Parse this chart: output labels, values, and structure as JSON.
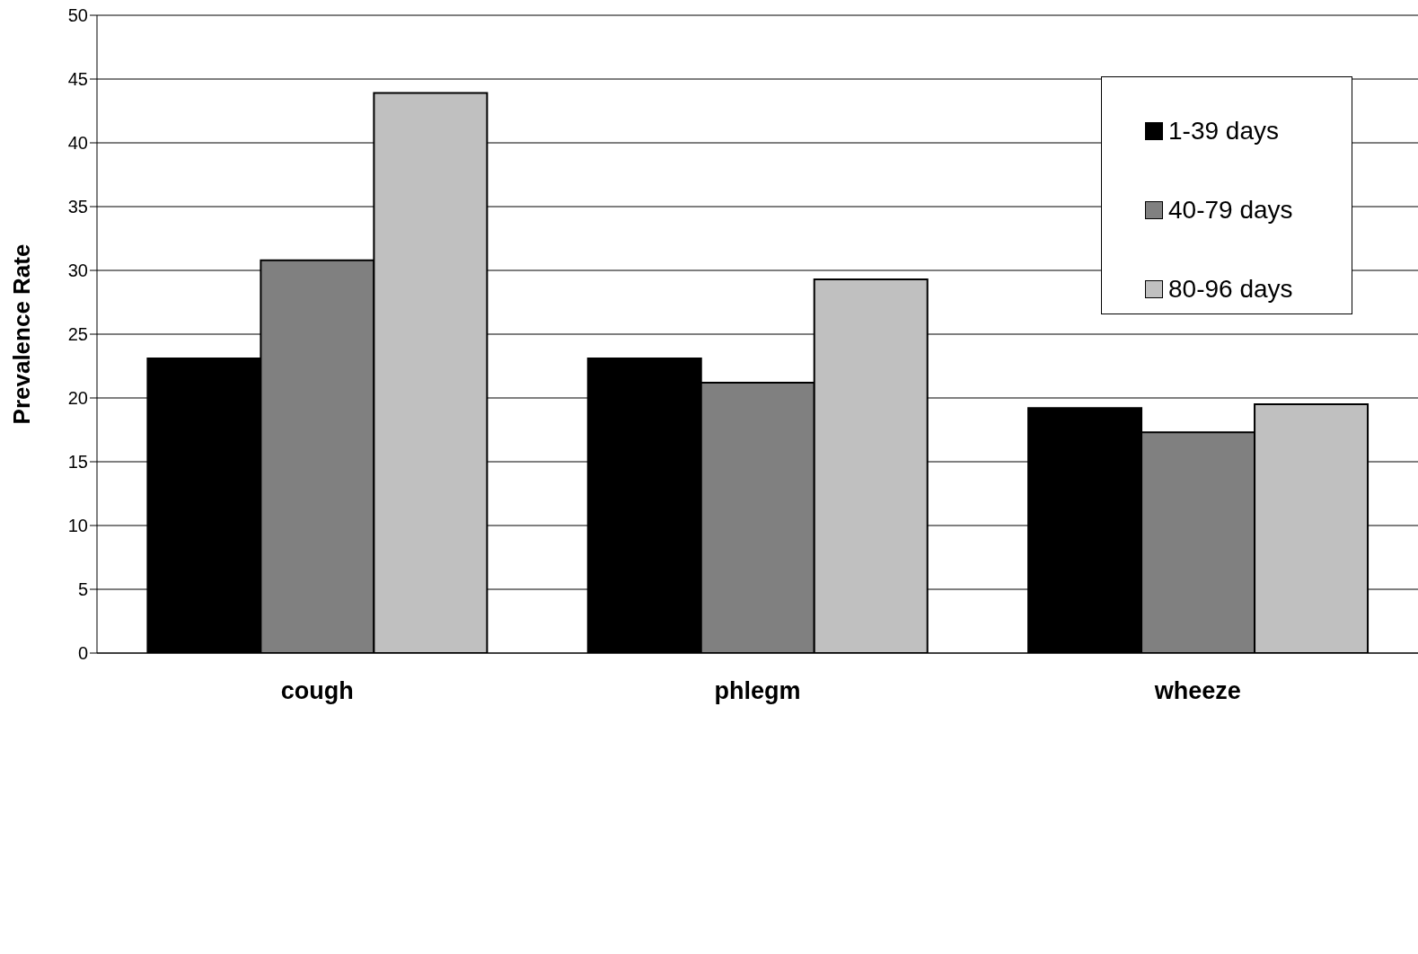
{
  "chart_data": {
    "type": "bar",
    "ylabel": "Prevalence Rate",
    "categories": [
      "cough",
      "phlegm",
      "wheeze"
    ],
    "series": [
      {
        "name": "1-39 days",
        "color": "#000000",
        "values": [
          23.1,
          23.1,
          19.2
        ]
      },
      {
        "name": "40-79 days",
        "color": "#808080",
        "values": [
          30.8,
          21.2,
          17.3
        ]
      },
      {
        "name": "80-96 days",
        "color": "#c0c0c0",
        "values": [
          43.9,
          29.3,
          19.5
        ]
      }
    ],
    "ylim": [
      0,
      50
    ],
    "yticks": [
      0,
      5,
      10,
      15,
      20,
      25,
      30,
      35,
      40,
      45,
      50
    ],
    "grid": "y",
    "legend": "top right"
  }
}
